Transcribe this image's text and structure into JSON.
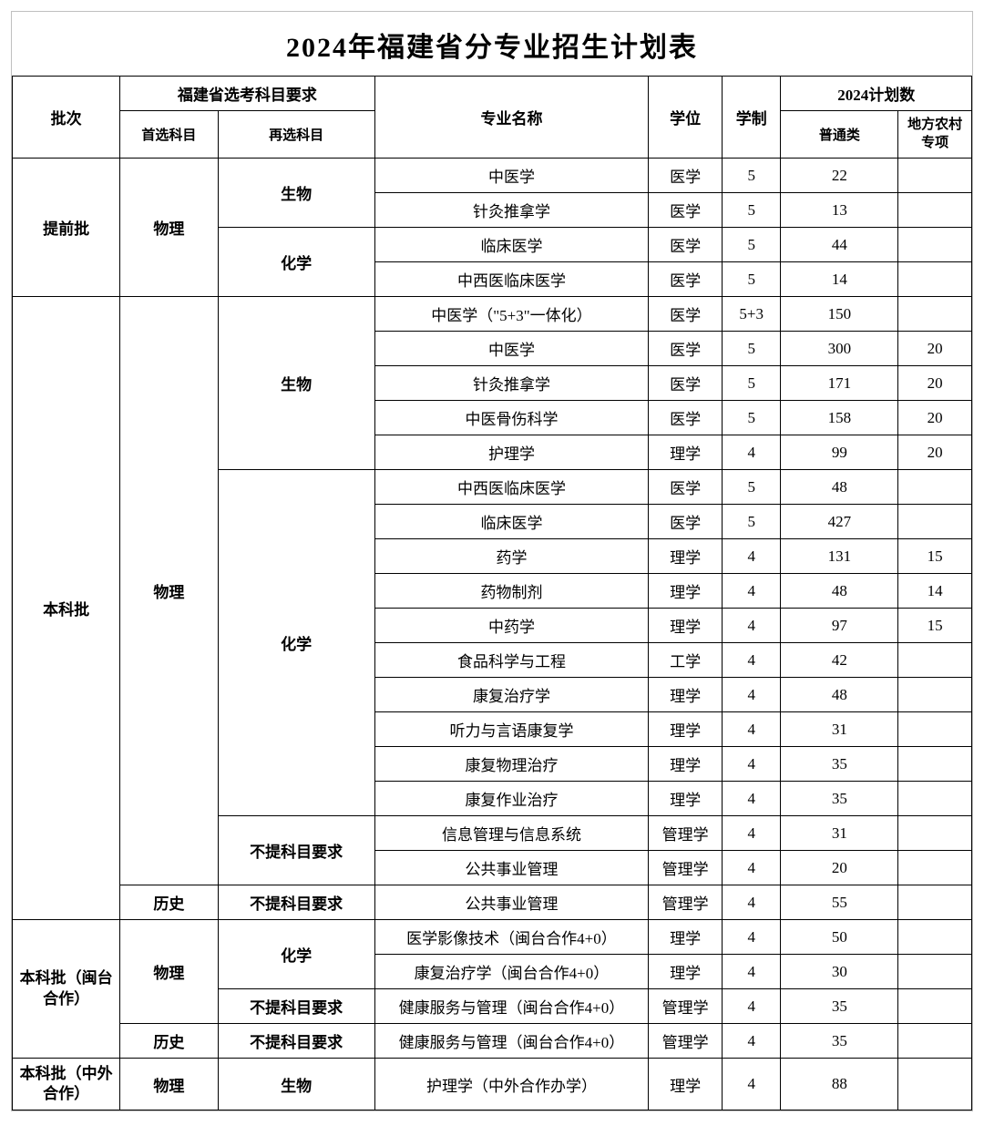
{
  "title": "2024年福建省分专业招生计划表",
  "headers": {
    "batch": "批次",
    "subject_group": "福建省选考科目要求",
    "primary": "首选科目",
    "secondary": "再选科目",
    "major": "专业名称",
    "degree": "学位",
    "duration": "学制",
    "plan_group": "2024计划数",
    "plan_normal": "普通类",
    "plan_rural": "地方农村专项"
  },
  "batches": {
    "early": "提前批",
    "undergrad": "本科批",
    "mintai": "本科批（闽台合作）",
    "foreign": "本科批（中外合作）"
  },
  "subjects": {
    "physics": "物理",
    "history": "历史",
    "biology": "生物",
    "chemistry": "化学",
    "none": "不提科目要求"
  },
  "rows": [
    {
      "major": "中医学",
      "degree": "医学",
      "dur": "5",
      "normal": "22",
      "rural": ""
    },
    {
      "major": "针灸推拿学",
      "degree": "医学",
      "dur": "5",
      "normal": "13",
      "rural": ""
    },
    {
      "major": "临床医学",
      "degree": "医学",
      "dur": "5",
      "normal": "44",
      "rural": ""
    },
    {
      "major": "中西医临床医学",
      "degree": "医学",
      "dur": "5",
      "normal": "14",
      "rural": ""
    },
    {
      "major": "中医学（\"5+3\"一体化）",
      "degree": "医学",
      "dur": "5+3",
      "normal": "150",
      "rural": ""
    },
    {
      "major": "中医学",
      "degree": "医学",
      "dur": "5",
      "normal": "300",
      "rural": "20"
    },
    {
      "major": "针灸推拿学",
      "degree": "医学",
      "dur": "5",
      "normal": "171",
      "rural": "20"
    },
    {
      "major": "中医骨伤科学",
      "degree": "医学",
      "dur": "5",
      "normal": "158",
      "rural": "20"
    },
    {
      "major": "护理学",
      "degree": "理学",
      "dur": "4",
      "normal": "99",
      "rural": "20"
    },
    {
      "major": "中西医临床医学",
      "degree": "医学",
      "dur": "5",
      "normal": "48",
      "rural": ""
    },
    {
      "major": "临床医学",
      "degree": "医学",
      "dur": "5",
      "normal": "427",
      "rural": ""
    },
    {
      "major": "药学",
      "degree": "理学",
      "dur": "4",
      "normal": "131",
      "rural": "15"
    },
    {
      "major": "药物制剂",
      "degree": "理学",
      "dur": "4",
      "normal": "48",
      "rural": "14"
    },
    {
      "major": "中药学",
      "degree": "理学",
      "dur": "4",
      "normal": "97",
      "rural": "15"
    },
    {
      "major": "食品科学与工程",
      "degree": "工学",
      "dur": "4",
      "normal": "42",
      "rural": ""
    },
    {
      "major": "康复治疗学",
      "degree": "理学",
      "dur": "4",
      "normal": "48",
      "rural": ""
    },
    {
      "major": "听力与言语康复学",
      "degree": "理学",
      "dur": "4",
      "normal": "31",
      "rural": ""
    },
    {
      "major": "康复物理治疗",
      "degree": "理学",
      "dur": "4",
      "normal": "35",
      "rural": ""
    },
    {
      "major": "康复作业治疗",
      "degree": "理学",
      "dur": "4",
      "normal": "35",
      "rural": ""
    },
    {
      "major": "信息管理与信息系统",
      "degree": "管理学",
      "dur": "4",
      "normal": "31",
      "rural": ""
    },
    {
      "major": "公共事业管理",
      "degree": "管理学",
      "dur": "4",
      "normal": "20",
      "rural": ""
    },
    {
      "major": "公共事业管理",
      "degree": "管理学",
      "dur": "4",
      "normal": "55",
      "rural": ""
    },
    {
      "major": "医学影像技术（闽台合作4+0）",
      "degree": "理学",
      "dur": "4",
      "normal": "50",
      "rural": ""
    },
    {
      "major": "康复治疗学（闽台合作4+0）",
      "degree": "理学",
      "dur": "4",
      "normal": "30",
      "rural": ""
    },
    {
      "major": "健康服务与管理（闽台合作4+0）",
      "degree": "管理学",
      "dur": "4",
      "normal": "35",
      "rural": ""
    },
    {
      "major": "健康服务与管理（闽台合作4+0）",
      "degree": "管理学",
      "dur": "4",
      "normal": "35",
      "rural": ""
    },
    {
      "major": "护理学（中外合作办学）",
      "degree": "理学",
      "dur": "4",
      "normal": "88",
      "rural": ""
    }
  ]
}
